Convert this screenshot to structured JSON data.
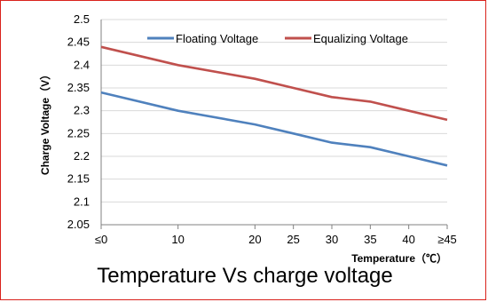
{
  "caption": "Temperature Vs charge voltage",
  "colors": {
    "border": "#d9221c",
    "floating": "#4f81bd",
    "equalizing": "#c0504d",
    "grid": "#d9d9d9",
    "axis": "#808080"
  },
  "chart_data": {
    "type": "line",
    "title": "",
    "xlabel": "Temperature（℃）",
    "ylabel": "Charge Voltage（V）",
    "categories": [
      "≤0",
      "10",
      "20",
      "25",
      "30",
      "35",
      "40",
      "≥45"
    ],
    "x": [
      0,
      10,
      20,
      25,
      30,
      35,
      40,
      45
    ],
    "ylim": [
      2.05,
      2.5
    ],
    "yticks": [
      "2.05",
      "2.1",
      "2.15",
      "2.2",
      "2.25",
      "2.3",
      "2.35",
      "2.4",
      "2.45",
      "2.5"
    ],
    "grid": true,
    "legend": "top",
    "series": [
      {
        "name": "Floating Voltage",
        "color": "#4f81bd",
        "values": [
          2.34,
          2.3,
          2.27,
          2.25,
          2.23,
          2.22,
          2.2,
          2.18
        ]
      },
      {
        "name": "Equalizing Voltage",
        "color": "#c0504d",
        "values": [
          2.44,
          2.4,
          2.37,
          2.35,
          2.33,
          2.32,
          2.3,
          2.28
        ]
      }
    ]
  }
}
